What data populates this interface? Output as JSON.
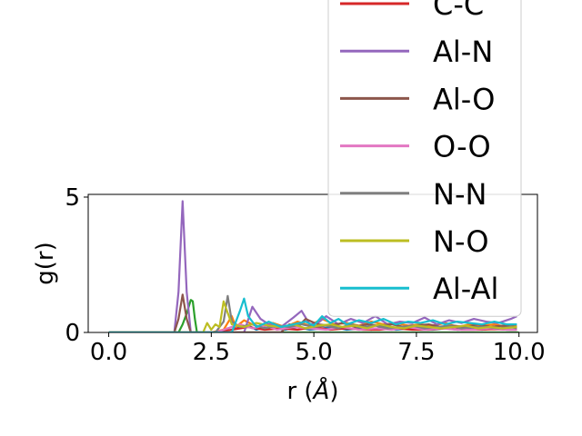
{
  "chart_data": {
    "type": "line",
    "title": "",
    "xlabel": "r (",
    "xlabel_unit": "Å",
    "xlabel_close": ")",
    "ylabel": "g(r)",
    "xlim": [
      -0.5,
      10.45
    ],
    "ylim": [
      0,
      5.1
    ],
    "xticks": [
      0.0,
      2.5,
      5.0,
      7.5,
      10.0
    ],
    "xtick_labels": [
      "0.0",
      "2.5",
      "5.0",
      "7.5",
      "10.0"
    ],
    "yticks": [
      0,
      5
    ],
    "ytick_labels": [
      "0",
      "5"
    ],
    "grid": false,
    "legend_position": "upper-right",
    "series": [
      {
        "name": "",
        "color": "#1f77b4",
        "x": [
          0,
          1.7,
          1.9,
          2.6,
          2.8,
          3.0,
          3.2,
          3.4,
          3.6,
          3.8,
          4.0,
          4.3,
          4.6,
          4.9,
          5.2,
          5.5,
          5.8,
          6.1,
          6.4,
          6.7,
          7.0,
          7.3,
          7.6,
          7.9,
          8.2,
          8.5,
          8.8,
          9.1,
          9.4,
          9.7,
          9.95
        ],
        "y": [
          0,
          0,
          0,
          0,
          0.1,
          0.2,
          0.15,
          0.25,
          0.1,
          0.2,
          0.15,
          0.1,
          0.2,
          0.1,
          0.15,
          0.2,
          0.1,
          0.15,
          0.1,
          0.2,
          0.1,
          0.15,
          0.1,
          0.1,
          0.15,
          0.1,
          0.12,
          0.1,
          0.15,
          0.1,
          0.1
        ]
      },
      {
        "name": "",
        "color": "#ff7f0e",
        "x": [
          0,
          2.5,
          2.8,
          3.0,
          3.1,
          3.3,
          3.5,
          3.7,
          4.0,
          4.3,
          4.6,
          4.9,
          5.2,
          5.5,
          5.8,
          6.1,
          6.4,
          6.7,
          7.0,
          7.3,
          7.6,
          7.9,
          8.2,
          8.5,
          8.8,
          9.1,
          9.4,
          9.7,
          9.95
        ],
        "y": [
          0,
          0,
          0.1,
          0.6,
          0.2,
          0.45,
          0.3,
          0.2,
          0.35,
          0.2,
          0.4,
          0.25,
          0.5,
          0.3,
          0.35,
          0.25,
          0.4,
          0.3,
          0.35,
          0.25,
          0.3,
          0.25,
          0.35,
          0.2,
          0.3,
          0.25,
          0.3,
          0.2,
          0.25
        ]
      },
      {
        "name": "",
        "color": "#2ca02c",
        "x": [
          0,
          1.7,
          1.8,
          1.9,
          2.0,
          2.05,
          2.1,
          2.15,
          10.0
        ],
        "y": [
          0,
          0,
          0.3,
          0.7,
          1.2,
          1.15,
          0.5,
          0,
          0
        ]
      },
      {
        "name": "C-C",
        "color": "#d62728",
        "x": [
          0,
          2.6,
          3.0,
          3.4,
          3.8,
          4.2,
          4.6,
          5.0,
          5.4,
          5.8,
          6.2,
          6.6,
          7.0,
          7.4,
          7.8,
          8.2,
          8.6,
          9.0,
          9.4,
          9.8,
          9.95
        ],
        "y": [
          0,
          0,
          0.1,
          0.2,
          0.1,
          0.15,
          0.1,
          0.2,
          0.1,
          0.15,
          0.1,
          0.1,
          0.15,
          0.1,
          0.1,
          0.15,
          0.1,
          0.1,
          0.12,
          0.1,
          0.1
        ]
      },
      {
        "name": "Al-N",
        "color": "#9467bd",
        "x": [
          0,
          1.6,
          1.7,
          1.8,
          1.9,
          2.0,
          3.3,
          3.5,
          3.7,
          3.9,
          4.2,
          4.5,
          4.7,
          4.9,
          5.1,
          5.3,
          5.6,
          5.9,
          6.2,
          6.5,
          6.8,
          7.1,
          7.4,
          7.7,
          8.0,
          8.3,
          8.6,
          8.9,
          9.2,
          9.5,
          9.8,
          9.95
        ],
        "y": [
          0,
          0,
          1.5,
          4.85,
          1.5,
          0,
          0,
          0.95,
          0.5,
          0.3,
          0.2,
          0.55,
          0.8,
          0.3,
          0.35,
          0.6,
          0.3,
          0.5,
          0.35,
          0.6,
          0.3,
          0.4,
          0.35,
          0.55,
          0.3,
          0.45,
          0.35,
          0.5,
          0.4,
          0.35,
          0.5,
          0.6
        ]
      },
      {
        "name": "Al-O",
        "color": "#8c564b",
        "x": [
          0,
          1.6,
          1.7,
          1.8,
          1.9,
          2.0,
          4.2,
          4.4,
          4.6,
          4.8,
          5.1,
          5.4,
          5.7,
          6.0,
          6.3,
          6.6,
          6.9,
          7.2,
          7.5,
          7.8,
          8.1,
          8.4,
          8.7,
          9.0,
          9.3,
          9.6,
          9.95
        ],
        "y": [
          0,
          0,
          0.5,
          1.4,
          0.5,
          0,
          0,
          0.3,
          0.2,
          0.5,
          0.3,
          0.25,
          0.35,
          0.2,
          0.3,
          0.25,
          0.3,
          0.2,
          0.25,
          0.3,
          0.2,
          0.25,
          0.2,
          0.3,
          0.2,
          0.25,
          0.2
        ]
      },
      {
        "name": "O-O",
        "color": "#e377c2",
        "x": [
          0,
          2.6,
          2.9,
          3.2,
          3.5,
          3.8,
          4.1,
          4.5,
          4.9,
          5.3,
          5.7,
          6.1,
          6.5,
          6.9,
          7.3,
          7.7,
          8.1,
          8.5,
          8.9,
          9.3,
          9.7,
          9.95
        ],
        "y": [
          0,
          0,
          0.15,
          0.3,
          0.15,
          0.25,
          0.1,
          0.2,
          0.15,
          0.1,
          0.2,
          0.1,
          0.15,
          0.1,
          0.2,
          0.1,
          0.15,
          0.1,
          0.1,
          0.15,
          0.1,
          0.1
        ]
      },
      {
        "name": "N-N",
        "color": "#7f7f7f",
        "x": [
          0,
          2.6,
          2.8,
          2.9,
          3.0,
          3.2,
          3.5,
          3.8,
          4.1,
          4.4,
          4.7,
          5.0,
          5.3,
          5.6,
          5.9,
          6.2,
          6.5,
          6.8,
          7.1,
          7.4,
          7.7,
          8.0,
          8.3,
          8.6,
          8.9,
          9.2,
          9.5,
          9.8,
          9.95
        ],
        "y": [
          0,
          0,
          0.4,
          1.35,
          0.4,
          0.2,
          0.3,
          0.15,
          0.25,
          0.2,
          0.3,
          0.2,
          0.25,
          0.15,
          0.3,
          0.2,
          0.25,
          0.15,
          0.2,
          0.25,
          0.15,
          0.2,
          0.25,
          0.15,
          0.2,
          0.2,
          0.15,
          0.2,
          0.15
        ]
      },
      {
        "name": "N-O",
        "color": "#bcbd22",
        "x": [
          0,
          2.3,
          2.4,
          2.5,
          2.6,
          2.7,
          2.8,
          3.0,
          3.3,
          3.6,
          3.9,
          4.2,
          4.5,
          4.8,
          5.1,
          5.4,
          5.7,
          6.0,
          6.3,
          6.6,
          6.9,
          7.2,
          7.5,
          7.8,
          8.1,
          8.4,
          8.7,
          9.0,
          9.3,
          9.6,
          9.95
        ],
        "y": [
          0,
          0,
          0.35,
          0.1,
          0.3,
          0.2,
          1.15,
          0.3,
          0.2,
          0.35,
          0.25,
          0.2,
          0.3,
          0.15,
          0.25,
          0.3,
          0.2,
          0.25,
          0.15,
          0.3,
          0.2,
          0.15,
          0.25,
          0.2,
          0.15,
          0.2,
          0.25,
          0.15,
          0.2,
          0.15,
          0.2
        ]
      },
      {
        "name": "Al-Al",
        "color": "#17becf",
        "x": [
          0,
          3.0,
          3.1,
          3.2,
          3.3,
          3.4,
          3.6,
          3.9,
          4.2,
          4.5,
          4.8,
          5.0,
          5.2,
          5.4,
          5.6,
          5.8,
          6.1,
          6.4,
          6.7,
          7.0,
          7.3,
          7.6,
          7.9,
          8.2,
          8.5,
          8.8,
          9.1,
          9.4,
          9.7,
          9.95
        ],
        "y": [
          0,
          0,
          0.4,
          0.8,
          1.25,
          0.6,
          0.2,
          0.4,
          0.2,
          0.3,
          0.4,
          0.25,
          0.6,
          0.35,
          0.5,
          0.3,
          0.45,
          0.35,
          0.5,
          0.3,
          0.4,
          0.35,
          0.45,
          0.3,
          0.4,
          0.35,
          0.3,
          0.4,
          0.3,
          0.3
        ]
      }
    ]
  }
}
